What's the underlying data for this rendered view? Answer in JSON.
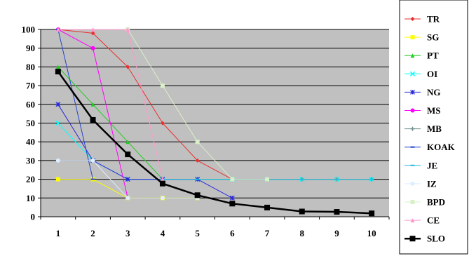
{
  "chart_data": {
    "type": "line",
    "title": "",
    "xlabel": "",
    "ylabel": "",
    "x": [
      1,
      2,
      3,
      4,
      5,
      6,
      7,
      8,
      9,
      10
    ],
    "xticks": [
      "1",
      "2",
      "3",
      "4",
      "5",
      "6",
      "7",
      "8",
      "9",
      "10"
    ],
    "yticks": [
      "0",
      "10",
      "20",
      "30",
      "40",
      "50",
      "60",
      "70",
      "80",
      "90",
      "100"
    ],
    "ylim": [
      0,
      100
    ],
    "xlim": [
      0.5,
      10.5
    ],
    "grid": true,
    "legend_position": "right",
    "plot_background": "#c0c0c0",
    "series": [
      {
        "name": "TR",
        "color": "#e83030",
        "marker": "diamond",
        "width": 1,
        "x": [
          1,
          2,
          3,
          4,
          5,
          6
        ],
        "values": [
          100,
          98,
          80,
          50,
          30,
          20
        ]
      },
      {
        "name": "SG",
        "color": "#ffff00",
        "marker": "square",
        "width": 1,
        "x": [
          1,
          2,
          3,
          4,
          5
        ],
        "values": [
          20,
          20,
          10,
          10,
          10
        ]
      },
      {
        "name": "PT",
        "color": "#22cc22",
        "marker": "triangle",
        "width": 1,
        "x": [
          1,
          2,
          3,
          4
        ],
        "values": [
          80,
          60,
          40,
          20
        ]
      },
      {
        "name": "OI",
        "color": "#00ffff",
        "marker": "x",
        "width": 1,
        "x": [
          1,
          2,
          3,
          4,
          5,
          6,
          7,
          8,
          9,
          10
        ],
        "values": [
          50,
          30,
          20,
          20,
          20,
          20,
          20,
          20,
          20,
          20
        ]
      },
      {
        "name": "NG",
        "color": "#2a2ad8",
        "marker": "star",
        "width": 1,
        "x": [
          1,
          2,
          3,
          4,
          5,
          6
        ],
        "values": [
          60,
          30,
          20,
          20,
          20,
          10
        ]
      },
      {
        "name": "MS",
        "color": "#ff00ff",
        "marker": "circle",
        "width": 1,
        "x": [
          1,
          2,
          3
        ],
        "values": [
          100,
          90,
          10
        ]
      },
      {
        "name": "MB",
        "color": "#709090",
        "marker": "plus",
        "width": 1,
        "x": [
          6,
          7,
          8,
          9,
          10
        ],
        "values": [
          20,
          20,
          20,
          20,
          20
        ]
      },
      {
        "name": "KOAK",
        "color": "#2244cc",
        "marker": "dash",
        "width": 1,
        "x": [
          1,
          2
        ],
        "values": [
          100,
          20
        ]
      },
      {
        "name": "JE",
        "color": "#22bbdd",
        "marker": "dash",
        "width": 1,
        "x": [
          4,
          5,
          6,
          7,
          8,
          9,
          10
        ],
        "values": [
          20,
          20,
          20,
          20,
          20,
          20,
          20
        ]
      },
      {
        "name": "IZ",
        "color": "#ddeeff",
        "marker": "circle",
        "width": 1,
        "x": [
          1,
          2,
          3,
          4,
          5
        ],
        "values": [
          30,
          30,
          10,
          10,
          10
        ]
      },
      {
        "name": "BPD",
        "color": "#d8f0c8",
        "marker": "square",
        "width": 1,
        "x": [
          3,
          4,
          5,
          6,
          7
        ],
        "values": [
          100,
          70,
          40,
          20,
          20
        ]
      },
      {
        "name": "CE",
        "color": "#ff99cc",
        "marker": "triangle",
        "width": 1,
        "x": [
          1,
          2,
          3,
          4
        ],
        "values": [
          100,
          100,
          100,
          20
        ]
      },
      {
        "name": "SLO",
        "color": "#000000",
        "marker": "square",
        "width": 2.5,
        "x": [
          1,
          2,
          3,
          4,
          5,
          6,
          7,
          8,
          9,
          10
        ],
        "values": [
          77.5,
          51.7,
          33.3,
          17.7,
          11.5,
          7.0,
          4.9,
          2.8,
          2.6,
          1.8
        ]
      }
    ]
  }
}
